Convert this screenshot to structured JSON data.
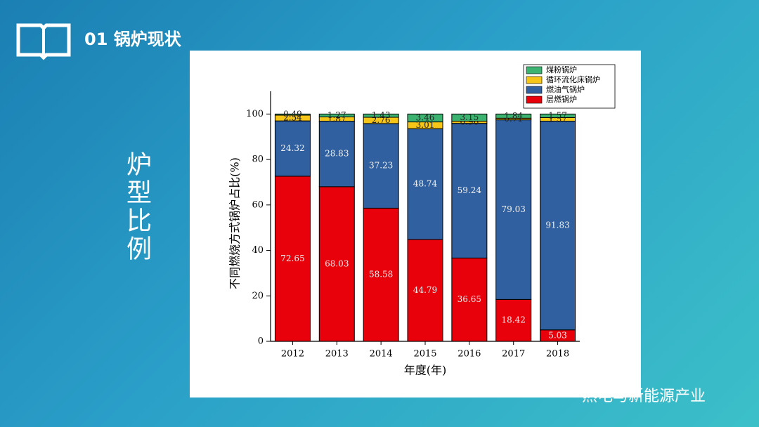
{
  "header": {
    "title": "01 锅炉现状"
  },
  "side_title": "炉型比例",
  "watermark": "热电与新能源产业",
  "chart_data": {
    "type": "stacked_bar",
    "x_label": "年度(年)",
    "y_label": "不同燃烧方式锅炉占比(%)",
    "categories": [
      "2012",
      "2013",
      "2014",
      "2015",
      "2016",
      "2017",
      "2018"
    ],
    "series": [
      {
        "name": "层燃锅炉",
        "color": "#e8000b",
        "values": [
          72.65,
          68.03,
          58.58,
          44.79,
          36.65,
          18.42,
          5.03
        ]
      },
      {
        "name": "燃油气锅炉",
        "color": "#3060a0",
        "values": [
          24.32,
          28.83,
          37.23,
          48.74,
          59.24,
          79.03,
          91.83
        ]
      },
      {
        "name": "循环流化床锅炉",
        "color": "#f5c518",
        "values": [
          2.54,
          1.87,
          2.76,
          3.01,
          0.96,
          0.71,
          1.57
        ]
      },
      {
        "name": "煤粉锅炉",
        "color": "#3cb371",
        "values": [
          0.49,
          1.27,
          1.43,
          3.46,
          3.15,
          1.84,
          1.57
        ]
      }
    ],
    "ylim": [
      0,
      110
    ],
    "yticks": [
      0,
      20,
      40,
      60,
      80,
      100
    ],
    "legend": "upper right"
  }
}
